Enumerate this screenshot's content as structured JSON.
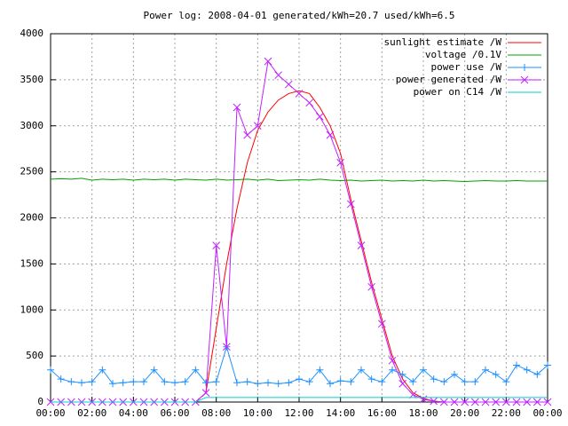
{
  "chart_data": {
    "type": "line",
    "title": "Power log: 2008-04-01 generated/kWh=20.7 used/kWh=6.5",
    "x": [
      0,
      0.5,
      1,
      1.5,
      2,
      2.5,
      3,
      3.5,
      4,
      4.5,
      5,
      5.5,
      6,
      6.5,
      7,
      7.5,
      8,
      8.5,
      9,
      9.5,
      10,
      10.5,
      11,
      11.5,
      12,
      12.5,
      13,
      13.5,
      14,
      14.5,
      15,
      15.5,
      16,
      16.5,
      17,
      17.5,
      18,
      18.5,
      19,
      19.5,
      20,
      20.5,
      21,
      21.5,
      22,
      22.5,
      23,
      23.5,
      24
    ],
    "xlim": [
      0,
      24
    ],
    "xticks": [
      {
        "value": 0,
        "label": "00:00"
      },
      {
        "value": 2,
        "label": "02:00"
      },
      {
        "value": 4,
        "label": "04:00"
      },
      {
        "value": 6,
        "label": "06:00"
      },
      {
        "value": 8,
        "label": "08:00"
      },
      {
        "value": 10,
        "label": "10:00"
      },
      {
        "value": 12,
        "label": "12:00"
      },
      {
        "value": 14,
        "label": "14:00"
      },
      {
        "value": 16,
        "label": "16:00"
      },
      {
        "value": 18,
        "label": "18:00"
      },
      {
        "value": 20,
        "label": "20:00"
      },
      {
        "value": 22,
        "label": "22:00"
      },
      {
        "value": 24,
        "label": "00:00"
      }
    ],
    "ylim": [
      0,
      4000
    ],
    "yticks": [
      0,
      500,
      1000,
      1500,
      2000,
      2500,
      3000,
      3500,
      4000
    ],
    "grid": true,
    "legend": "top-right",
    "series": [
      {
        "name": "sunlight estimate /W",
        "color": "#ff0000",
        "marker": "none",
        "values": [
          0,
          0,
          0,
          0,
          0,
          0,
          0,
          0,
          0,
          0,
          0,
          0,
          0,
          0,
          0,
          100,
          800,
          1500,
          2100,
          2600,
          2950,
          3150,
          3280,
          3350,
          3380,
          3350,
          3200,
          3000,
          2700,
          2200,
          1750,
          1300,
          900,
          500,
          250,
          100,
          40,
          10,
          0,
          0,
          0,
          0,
          0,
          0,
          0,
          0,
          0,
          0,
          0
        ]
      },
      {
        "name": "voltage /0.1V",
        "color": "#00a000",
        "marker": "none",
        "values": [
          2420,
          2425,
          2420,
          2430,
          2410,
          2420,
          2415,
          2420,
          2410,
          2420,
          2415,
          2420,
          2410,
          2420,
          2415,
          2410,
          2420,
          2410,
          2415,
          2420,
          2410,
          2420,
          2405,
          2410,
          2415,
          2410,
          2420,
          2410,
          2405,
          2410,
          2400,
          2405,
          2410,
          2400,
          2405,
          2400,
          2410,
          2400,
          2405,
          2400,
          2395,
          2400,
          2405,
          2400,
          2400,
          2405,
          2400,
          2400,
          2400
        ]
      },
      {
        "name": "power use /W",
        "color": "#1e90ff",
        "marker": "plus",
        "values": [
          350,
          250,
          220,
          210,
          220,
          350,
          200,
          210,
          220,
          220,
          350,
          220,
          210,
          220,
          350,
          210,
          220,
          600,
          210,
          220,
          200,
          210,
          200,
          210,
          250,
          220,
          350,
          200,
          230,
          220,
          350,
          250,
          220,
          350,
          300,
          220,
          350,
          250,
          220,
          300,
          220,
          220,
          350,
          300,
          220,
          400,
          350,
          300,
          400
        ]
      },
      {
        "name": "power generated /W",
        "color": "#c020ff",
        "marker": "cross",
        "values": [
          0,
          0,
          0,
          0,
          0,
          0,
          0,
          0,
          0,
          0,
          0,
          0,
          0,
          0,
          0,
          100,
          1700,
          600,
          3200,
          2900,
          3000,
          3700,
          3550,
          3450,
          3350,
          3250,
          3100,
          2900,
          2600,
          2150,
          1700,
          1250,
          850,
          450,
          200,
          80,
          30,
          10,
          0,
          0,
          0,
          0,
          0,
          0,
          0,
          0,
          0,
          0,
          0
        ]
      },
      {
        "name": "power on C14 /W",
        "color": "#00d0d0",
        "marker": "none",
        "values": [
          0,
          0,
          0,
          0,
          0,
          0,
          0,
          0,
          0,
          0,
          0,
          0,
          0,
          0,
          0,
          50,
          50,
          50,
          50,
          50,
          50,
          50,
          50,
          50,
          50,
          50,
          50,
          50,
          50,
          50,
          50,
          50,
          50,
          50,
          50,
          50,
          50,
          50,
          50,
          50,
          50,
          50,
          50,
          50,
          50,
          50,
          50,
          50,
          50
        ]
      }
    ]
  }
}
